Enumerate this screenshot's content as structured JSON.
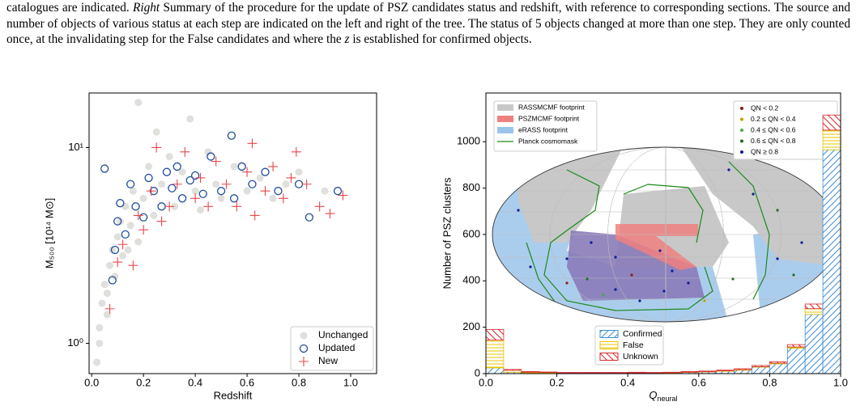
{
  "caption": [
    "catalogues are indicated. ",
    "Right",
    " Summary of the procedure for the update of PSZ candidates status and redshift, with reference to corresponding sections. The source and number of objects of various status at each step are indicated on the left and right of the tree. The status of 5 objects changed at more than one step. They are only counted once, at the invalidating step for the False candidates and where the ",
    "z",
    " is established for confirmed objects."
  ],
  "chart_data": [
    {
      "type": "scatter",
      "xlabel": "Redshift",
      "ylabel": "M₅₀₀ [10¹⁴ M⊙]",
      "xlim": [
        -0.01,
        1.1
      ],
      "ylim": [
        0.7,
        19
      ],
      "log_y": true,
      "xticks": [
        {
          "value": 0,
          "label": "0.0"
        },
        0.2,
        0.4,
        0.6,
        0.8,
        {
          "value": 1,
          "label": "1.0"
        }
      ],
      "yticks": [
        {
          "value": 1,
          "label": "10⁰"
        },
        {
          "value": 10,
          "label": "10¹"
        }
      ],
      "legend": "lower right",
      "series": [
        {
          "name": "Unchanged",
          "color": "#c4c4c0",
          "marker": "filled-circle",
          "x": [
            0.02,
            0.03,
            0.04,
            0.05,
            0.06,
            0.07,
            0.08,
            0.09,
            0.1,
            0.11,
            0.12,
            0.13,
            0.15,
            0.16,
            0.18,
            0.18,
            0.2,
            0.22,
            0.24,
            0.25,
            0.27,
            0.3,
            0.32,
            0.35,
            0.38,
            0.4,
            0.42,
            0.45,
            0.48,
            0.5,
            0.55,
            0.6,
            0.65,
            0.7,
            0.75,
            0.8,
            0.9,
            0.03,
            0.06,
            0.14
          ],
          "values": [
            0.8,
            1.2,
            1.6,
            2.0,
            1.4,
            2.5,
            3.0,
            2.2,
            3.5,
            4.2,
            2.8,
            5.0,
            4.0,
            6.0,
            3.3,
            17,
            5.5,
            8.0,
            4.5,
            12,
            6.5,
            9.0,
            5.0,
            7.5,
            14,
            6.0,
            4.8,
            9.5,
            6.5,
            5.5,
            8.0,
            6.0,
            7.0,
            5.5,
            6.5,
            7.5,
            6.0,
            1.0,
            1.8,
            3.0
          ]
        },
        {
          "name": "Updated",
          "color": "#1f4e9c",
          "marker": "open-circle",
          "x": [
            0.05,
            0.08,
            0.09,
            0.1,
            0.11,
            0.13,
            0.15,
            0.17,
            0.2,
            0.22,
            0.24,
            0.27,
            0.29,
            0.31,
            0.33,
            0.35,
            0.38,
            0.4,
            0.43,
            0.46,
            0.5,
            0.54,
            0.55,
            0.58,
            0.62,
            0.67,
            0.72,
            0.8,
            0.84,
            0.95
          ],
          "values": [
            7.8,
            2.1,
            3.0,
            4.2,
            5.2,
            3.6,
            6.5,
            5.0,
            4.4,
            7.0,
            6.0,
            5.0,
            7.5,
            6.2,
            8.0,
            5.5,
            6.8,
            7.2,
            5.8,
            9.0,
            6.0,
            11.5,
            5.5,
            8.0,
            6.5,
            7.5,
            6.0,
            6.5,
            4.4,
            6.0
          ]
        },
        {
          "name": "New",
          "color": "#e8474c",
          "marker": "plus",
          "x": [
            0.07,
            0.1,
            0.12,
            0.16,
            0.18,
            0.2,
            0.23,
            0.25,
            0.27,
            0.3,
            0.33,
            0.36,
            0.4,
            0.42,
            0.45,
            0.48,
            0.52,
            0.56,
            0.6,
            0.63,
            0.67,
            0.7,
            0.74,
            0.77,
            0.79,
            0.83,
            0.88,
            0.92,
            0.97,
            0.62
          ],
          "values": [
            1.5,
            2.6,
            3.2,
            2.5,
            4.5,
            3.8,
            6.0,
            10,
            4.2,
            5.0,
            6.5,
            9.5,
            5.5,
            7.0,
            5.0,
            8.5,
            6.5,
            5.0,
            7.5,
            4.5,
            6.0,
            8.0,
            5.5,
            7.0,
            9.5,
            6.5,
            5.0,
            4.6,
            5.7,
            10.5
          ]
        }
      ]
    },
    {
      "type": "histogram",
      "stacked": true,
      "xlabel": {
        "main": "Q",
        "sub": "neural"
      },
      "ylabel": "Number of PSZ clusters",
      "xlim": [
        0,
        1
      ],
      "ylim": [
        0,
        1210
      ],
      "xticks": [
        {
          "value": 0,
          "label": "0.0"
        },
        0.2,
        0.4,
        0.6,
        0.8,
        {
          "value": 1,
          "label": "1.0"
        }
      ],
      "yticks": [
        0,
        200,
        400,
        600,
        800,
        1000
      ],
      "legend": "lower center",
      "bins": [
        0,
        0.05,
        0.1,
        0.15,
        0.2,
        0.25,
        0.3,
        0.35,
        0.4,
        0.45,
        0.5,
        0.55,
        0.6,
        0.65,
        0.7,
        0.75,
        0.8,
        0.85,
        0.9,
        0.95,
        1.0
      ],
      "series": [
        {
          "name": "Confirmed",
          "color": "#3d8fd6",
          "hatch": "diagonal",
          "values": [
            25,
            6,
            3,
            3,
            2,
            2,
            2,
            2,
            2,
            2,
            3,
            5,
            7,
            10,
            15,
            28,
            42,
            110,
            255,
            965
          ]
        },
        {
          "name": "False",
          "color": "#e8c400",
          "hatch": "horizontal",
          "values": [
            120,
            8,
            3,
            2,
            1,
            1,
            1,
            1,
            1,
            1,
            1,
            1,
            1,
            2,
            2,
            2,
            3,
            5,
            25,
            85
          ]
        },
        {
          "name": "Unknown",
          "color": "#d62728",
          "hatch": "antidiagonal",
          "values": [
            45,
            4,
            3,
            2,
            2,
            2,
            2,
            2,
            3,
            2,
            2,
            3,
            3,
            3,
            4,
            5,
            6,
            10,
            20,
            65
          ]
        }
      ],
      "inset": {
        "footprints": [
          {
            "label": "RASSMCMF footprint",
            "color": "#c8c8c8"
          },
          {
            "label": "PSZMCMF footprint",
            "color": "#f08080"
          },
          {
            "label": "eRASS footprint",
            "color": "#9cc4ea"
          },
          {
            "label": "Planck cosmomask",
            "color": "#1a8a1a"
          }
        ],
        "qn_classes": [
          {
            "label": "QN < 0.2",
            "color": "#8b1a1a"
          },
          {
            "label": "0.2 ≤ QN < 0.4",
            "color": "#b8a400"
          },
          {
            "label": "0.4 ≤ QN < 0.6",
            "color": "#4aa84a"
          },
          {
            "label": "0.6 ≤ QN < 0.8",
            "color": "#1e6e1e"
          },
          {
            "label": "QN ≥ 0.8",
            "color": "#0a1a9a"
          }
        ]
      }
    }
  ]
}
